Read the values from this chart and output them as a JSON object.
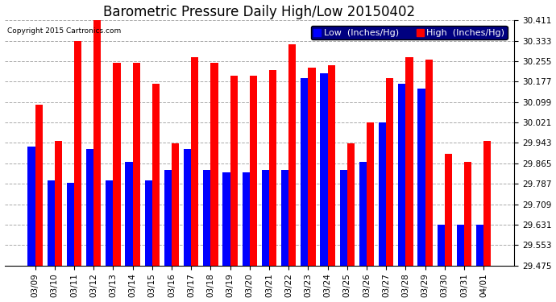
{
  "title": "Barometric Pressure Daily High/Low 20150402",
  "copyright": "Copyright 2015 Cartronics.com",
  "legend_low": "Low  (Inches/Hg)",
  "legend_high": "High  (Inches/Hg)",
  "dates": [
    "03/09",
    "03/10",
    "03/11",
    "03/12",
    "03/13",
    "03/14",
    "03/15",
    "03/16",
    "03/17",
    "03/18",
    "03/19",
    "03/20",
    "03/21",
    "03/22",
    "03/23",
    "03/24",
    "03/25",
    "03/26",
    "03/27",
    "03/28",
    "03/29",
    "03/30",
    "03/31",
    "04/01"
  ],
  "low": [
    29.93,
    29.8,
    29.79,
    29.92,
    29.8,
    29.87,
    29.8,
    29.84,
    29.92,
    29.84,
    29.83,
    29.83,
    29.84,
    29.84,
    30.19,
    30.21,
    29.84,
    29.87,
    30.02,
    30.17,
    30.15,
    29.63,
    29.63,
    29.63
  ],
  "high": [
    30.09,
    29.95,
    30.33,
    30.41,
    30.25,
    30.25,
    30.17,
    29.94,
    30.27,
    30.25,
    30.2,
    30.2,
    30.22,
    30.32,
    30.23,
    30.24,
    29.94,
    30.02,
    30.19,
    30.27,
    30.26,
    29.9,
    29.87,
    29.95
  ],
  "ymin": 29.475,
  "ymax": 30.411,
  "yticks": [
    29.475,
    29.553,
    29.631,
    29.709,
    29.787,
    29.865,
    29.943,
    30.021,
    30.099,
    30.177,
    30.255,
    30.333,
    30.411
  ],
  "bar_width": 0.38,
  "low_color": "#0000ff",
  "high_color": "#ff0000",
  "bg_color": "#ffffff",
  "grid_color": "#aaaaaa",
  "title_fontsize": 12,
  "tick_fontsize": 7.5,
  "legend_fontsize": 8
}
